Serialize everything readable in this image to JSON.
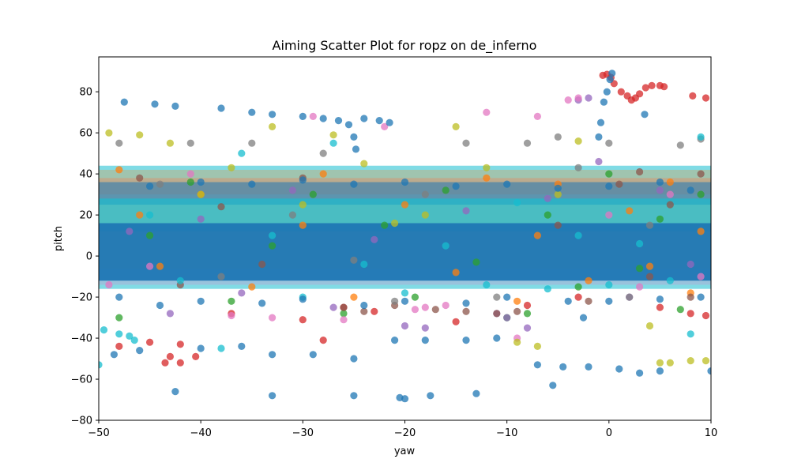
{
  "chart_data": {
    "type": "scatter",
    "title": "Aiming Scatter Plot for ropz on de_inferno",
    "xlabel": "yaw",
    "ylabel": "pitch",
    "xlim": [
      -50,
      10
    ],
    "ylim": [
      -80,
      97
    ],
    "x_ticks": [
      -50,
      -40,
      -30,
      -20,
      -10,
      0,
      10
    ],
    "y_ticks": [
      -80,
      -60,
      -40,
      -20,
      0,
      20,
      40,
      60,
      80
    ],
    "x_tick_labels": [
      "−50",
      "−40",
      "−30",
      "−20",
      "−10",
      "0",
      "10"
    ],
    "y_tick_labels": [
      "−80",
      "−60",
      "−40",
      "−20",
      "0",
      "20",
      "40",
      "60",
      "80"
    ],
    "grid": false,
    "marker_alpha": 0.75,
    "palette": [
      "#1f77b4",
      "#ff7f0e",
      "#2ca02c",
      "#d62728",
      "#9467bd",
      "#8c564b",
      "#e377c2",
      "#7f7f7f",
      "#bcbd22",
      "#17becf"
    ],
    "series": [
      {
        "color": "#d62728",
        "points": [
          [
            -0.6,
            88
          ],
          [
            -0.2,
            88.5
          ],
          [
            0.2,
            87
          ],
          [
            0.5,
            84
          ],
          [
            1.2,
            80
          ],
          [
            1.8,
            78
          ],
          [
            2.2,
            76
          ],
          [
            2.6,
            77
          ],
          [
            3.0,
            79
          ],
          [
            3.6,
            82
          ],
          [
            4.2,
            83
          ],
          [
            5.0,
            83
          ],
          [
            5.4,
            82.5
          ],
          [
            8.2,
            78
          ],
          [
            9.5,
            77
          ],
          [
            -43,
            -49
          ],
          [
            -43.5,
            -52
          ],
          [
            -42,
            -52
          ],
          [
            -40.5,
            -49
          ],
          [
            -45,
            -42
          ],
          [
            -42,
            -43
          ],
          [
            -37,
            -28
          ],
          [
            -30,
            -31
          ],
          [
            -26,
            -25
          ],
          [
            -23,
            -27
          ],
          [
            -8,
            -24
          ],
          [
            -3,
            -20
          ],
          [
            5,
            -25
          ],
          [
            8,
            -28
          ],
          [
            9.5,
            -29
          ],
          [
            -48,
            -44
          ],
          [
            -28,
            -41
          ],
          [
            -15,
            -32
          ]
        ]
      },
      {
        "color": "#ff7f0e",
        "points": [
          [
            -48,
            42
          ],
          [
            -46,
            20
          ],
          [
            -44,
            -5
          ],
          [
            -40,
            30
          ],
          [
            -35,
            -15
          ],
          [
            -30,
            15
          ],
          [
            -28,
            40
          ],
          [
            -25,
            -20
          ],
          [
            -20,
            25
          ],
          [
            -15,
            -8
          ],
          [
            -12,
            38
          ],
          [
            -9,
            -22
          ],
          [
            -7,
            10
          ],
          [
            -5,
            35
          ],
          [
            -2,
            -12
          ],
          [
            2,
            22
          ],
          [
            4,
            -5
          ],
          [
            6,
            36
          ],
          [
            8,
            -18
          ],
          [
            9,
            12
          ]
        ]
      },
      {
        "color": "#2ca02c",
        "points": [
          [
            -48,
            -30
          ],
          [
            -45,
            10
          ],
          [
            -41,
            36
          ],
          [
            -37,
            -22
          ],
          [
            -33,
            5
          ],
          [
            -29,
            30
          ],
          [
            -26,
            -28
          ],
          [
            -22,
            15
          ],
          [
            -19,
            -20
          ],
          [
            -16,
            32
          ],
          [
            -13,
            -3
          ],
          [
            -10,
            -30
          ],
          [
            -8,
            -28
          ],
          [
            -6,
            20
          ],
          [
            -3,
            -15
          ],
          [
            0,
            40
          ],
          [
            3,
            -6
          ],
          [
            5,
            18
          ],
          [
            7,
            -26
          ],
          [
            9,
            30
          ]
        ]
      },
      {
        "color": "#9467bd",
        "points": [
          [
            -47,
            12
          ],
          [
            -43,
            -28
          ],
          [
            -40,
            18
          ],
          [
            -36,
            -18
          ],
          [
            -31,
            32
          ],
          [
            -27,
            -25
          ],
          [
            -23,
            8
          ],
          [
            -20,
            -34
          ],
          [
            -18,
            -35
          ],
          [
            -14,
            22
          ],
          [
            -11,
            -28
          ],
          [
            -10,
            -30
          ],
          [
            -8,
            -35
          ],
          [
            -6,
            28
          ],
          [
            -3,
            76
          ],
          [
            -2,
            77
          ],
          [
            -1,
            46
          ],
          [
            2,
            -20
          ],
          [
            5,
            32
          ],
          [
            8,
            -4
          ]
        ]
      },
      {
        "color": "#8c564b",
        "points": [
          [
            -46,
            38
          ],
          [
            -42,
            -14
          ],
          [
            -38,
            24
          ],
          [
            -34,
            -4
          ],
          [
            -30,
            38
          ],
          [
            -26,
            -25
          ],
          [
            -24,
            -27
          ],
          [
            -21,
            -24
          ],
          [
            -17,
            -26
          ],
          [
            -14,
            -27
          ],
          [
            -11,
            -28
          ],
          [
            -9,
            -27
          ],
          [
            -5,
            15
          ],
          [
            -2,
            -22
          ],
          [
            1,
            35
          ],
          [
            4,
            -10
          ],
          [
            6,
            25
          ],
          [
            8,
            -20
          ],
          [
            9,
            40
          ],
          [
            3,
            41
          ]
        ]
      },
      {
        "color": "#e377c2",
        "points": [
          [
            -49,
            -14
          ],
          [
            -45,
            -5
          ],
          [
            -41,
            40
          ],
          [
            -37,
            -29
          ],
          [
            -33,
            -30
          ],
          [
            -29,
            68
          ],
          [
            -26,
            -31
          ],
          [
            -22,
            63
          ],
          [
            -19,
            -26
          ],
          [
            -18,
            -25
          ],
          [
            -16,
            -24
          ],
          [
            -12,
            70
          ],
          [
            -9,
            -40
          ],
          [
            -7,
            68
          ],
          [
            -4,
            76
          ],
          [
            -3,
            77
          ],
          [
            0,
            20
          ],
          [
            3,
            -15
          ],
          [
            6,
            30
          ],
          [
            9,
            -10
          ]
        ]
      },
      {
        "color": "#7f7f7f",
        "points": [
          [
            -48,
            55
          ],
          [
            -44,
            35
          ],
          [
            -41,
            55
          ],
          [
            -38,
            -10
          ],
          [
            -35,
            55
          ],
          [
            -31,
            20
          ],
          [
            -28,
            50
          ],
          [
            -25,
            -2
          ],
          [
            -21,
            -22
          ],
          [
            -18,
            30
          ],
          [
            -14,
            55
          ],
          [
            -11,
            -20
          ],
          [
            -8,
            55
          ],
          [
            -5,
            58
          ],
          [
            -3,
            43
          ],
          [
            0,
            55
          ],
          [
            2,
            -20
          ],
          [
            4,
            15
          ],
          [
            7,
            54
          ],
          [
            9,
            57
          ]
        ]
      },
      {
        "color": "#bcbd22",
        "points": [
          [
            -49,
            60
          ],
          [
            -46,
            59
          ],
          [
            -43,
            55
          ],
          [
            -40,
            30
          ],
          [
            -37,
            43
          ],
          [
            -33,
            63
          ],
          [
            -30,
            25
          ],
          [
            -27,
            59
          ],
          [
            -24,
            45
          ],
          [
            -21,
            16
          ],
          [
            -18,
            20
          ],
          [
            -15,
            63
          ],
          [
            -12,
            43
          ],
          [
            -9,
            -42
          ],
          [
            -7,
            -44
          ],
          [
            -5,
            30
          ],
          [
            -3,
            56
          ],
          [
            4,
            -34
          ],
          [
            5,
            -52
          ],
          [
            6,
            -52
          ],
          [
            8,
            -51
          ],
          [
            9.5,
            -51
          ]
        ]
      },
      {
        "color": "#17becf",
        "points": [
          [
            -50,
            -53
          ],
          [
            -49.5,
            -36
          ],
          [
            -48,
            -38
          ],
          [
            -47,
            -39
          ],
          [
            -46.5,
            -41
          ],
          [
            -45,
            20
          ],
          [
            -42,
            -12
          ],
          [
            -38,
            -45
          ],
          [
            -36,
            50
          ],
          [
            -33,
            10
          ],
          [
            -30,
            -20
          ],
          [
            -27,
            55
          ],
          [
            -24,
            -4
          ],
          [
            -20,
            -18
          ],
          [
            -16,
            5
          ],
          [
            -12,
            -14
          ],
          [
            -9,
            26
          ],
          [
            -6,
            -16
          ],
          [
            -3,
            10
          ],
          [
            0,
            -14
          ],
          [
            3,
            6
          ],
          [
            6,
            -12
          ],
          [
            9,
            58
          ],
          [
            8,
            -38
          ]
        ]
      },
      {
        "color": "#1f77b4",
        "points": [
          [
            -47.5,
            75
          ],
          [
            -44.5,
            74
          ],
          [
            -42.5,
            73
          ],
          [
            -38,
            72
          ],
          [
            -35,
            70
          ],
          [
            -33,
            69
          ],
          [
            -30,
            68
          ],
          [
            -28,
            67
          ],
          [
            -26.5,
            66
          ],
          [
            -25.5,
            64
          ],
          [
            -25,
            58
          ],
          [
            -24.8,
            52
          ],
          [
            -24,
            67
          ],
          [
            -22.5,
            66
          ],
          [
            -21.5,
            65
          ],
          [
            -0.5,
            75
          ],
          [
            -0.2,
            80
          ],
          [
            0.1,
            86
          ],
          [
            0.3,
            89
          ],
          [
            -0.8,
            65
          ],
          [
            -1,
            58
          ],
          [
            -46,
            -46
          ],
          [
            -48.5,
            -48
          ],
          [
            -40,
            -45
          ],
          [
            -36,
            -44
          ],
          [
            -33,
            -48
          ],
          [
            -29,
            -48
          ],
          [
            -25,
            -50
          ],
          [
            -21,
            -41
          ],
          [
            -18,
            -41
          ],
          [
            -14,
            -41
          ],
          [
            -11,
            -40
          ],
          [
            -20.5,
            -69
          ],
          [
            -20,
            -69.5
          ],
          [
            -25,
            -68
          ],
          [
            -33,
            -68
          ],
          [
            -17.5,
            -68
          ],
          [
            -13,
            -67
          ],
          [
            -42.5,
            -66
          ],
          [
            -5.5,
            -63
          ],
          [
            -7,
            -53
          ],
          [
            -4.5,
            -54
          ],
          [
            -2,
            -54
          ],
          [
            1,
            -55
          ],
          [
            3,
            -57
          ],
          [
            5,
            -56
          ],
          [
            10,
            -56
          ],
          [
            -40,
            36
          ],
          [
            -30,
            37
          ],
          [
            -20,
            36
          ],
          [
            -10,
            35
          ],
          [
            0,
            34
          ],
          [
            5,
            36
          ],
          [
            -45,
            34
          ],
          [
            -35,
            35
          ],
          [
            -25,
            35
          ],
          [
            -15,
            34
          ],
          [
            -5,
            33
          ],
          [
            8,
            32
          ],
          [
            -48,
            -20
          ],
          [
            -40,
            -22
          ],
          [
            -30,
            -21
          ],
          [
            -20,
            -22
          ],
          [
            -10,
            -20
          ],
          [
            0,
            -22
          ],
          [
            5,
            -21
          ],
          [
            -44,
            -24
          ],
          [
            -34,
            -23
          ],
          [
            -24,
            -24
          ],
          [
            -14,
            -23
          ],
          [
            -4,
            -22
          ],
          [
            9,
            -20
          ],
          [
            3.5,
            69
          ],
          [
            -2.5,
            -30
          ]
        ]
      }
    ]
  }
}
